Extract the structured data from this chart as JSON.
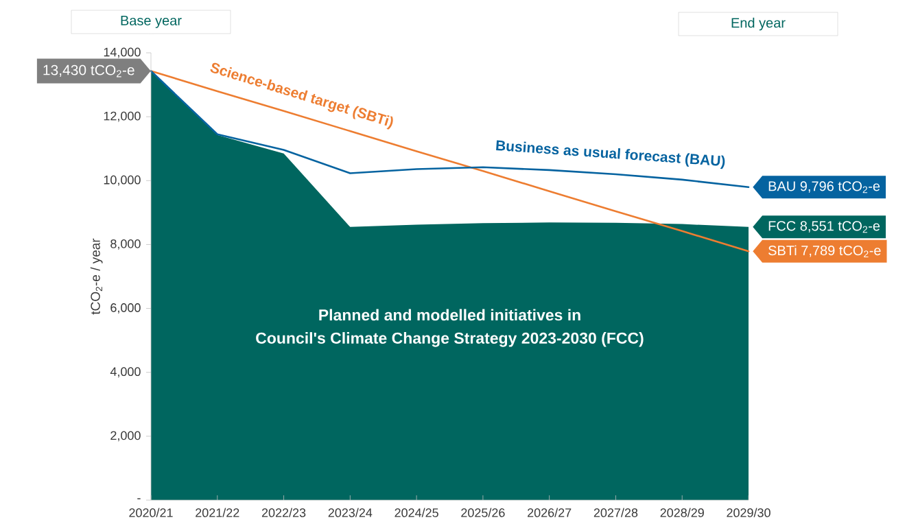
{
  "chart_data": {
    "type": "line",
    "categories": [
      "2020/21",
      "2021/22",
      "2022/23",
      "2023/24",
      "2024/25",
      "2025/26",
      "2026/27",
      "2027/28",
      "2028/29",
      "2029/30"
    ],
    "series": [
      {
        "type": "area",
        "color": "#00665f",
        "values": [
          13430,
          11430,
          10850,
          8550,
          8620,
          8670,
          8690,
          8680,
          8640,
          8551
        ]
      },
      {
        "name": "Science-based target (SBTi)",
        "color": "#ed7d31",
        "values": [
          13430,
          12800,
          12180,
          11550,
          10920,
          10300,
          9670,
          9040,
          8420,
          7789
        ]
      },
      {
        "name": "Business as usual forecast (BAU)",
        "color": "#0563a0",
        "values": [
          13430,
          11450,
          10960,
          10230,
          10360,
          10420,
          10330,
          10200,
          10030,
          9796
        ]
      }
    ],
    "ylabel": "tCO$_{2}$-e / year",
    "ylim": [
      0,
      14000
    ],
    "yticks": [
      {
        "value": 0,
        "label": "-"
      },
      {
        "value": 2000,
        "label": "2,000"
      },
      {
        "value": 4000,
        "label": "4,000"
      },
      {
        "value": 6000,
        "label": "6,000"
      },
      {
        "value": 8000,
        "label": "8,000"
      },
      {
        "value": 10000,
        "label": "10,000"
      },
      {
        "value": 12000,
        "label": "12,000"
      },
      {
        "value": 14000,
        "label": "14,000"
      }
    ],
    "annotations": [
      "Base year",
      "End year",
      {
        "text": "13,430 tCO$_{2}$-e",
        "x": "2020/21",
        "y": 13430
      },
      {
        "text": "BAU 9,796 tCO$_{2}$-e",
        "x": "2029/30",
        "y": 9796
      },
      {
        "text": "FCC 8,551 tCO$_{2}$-e",
        "x": "2029/30",
        "y": 8551
      },
      {
        "text": "SBTi 7,789 tCO$_{2}$-e",
        "x": "2029/30",
        "y": 7789
      },
      "Planned and modelled initiatives in",
      "Council's Climate Change Strategy 2023-2030 (FCC)"
    ]
  }
}
